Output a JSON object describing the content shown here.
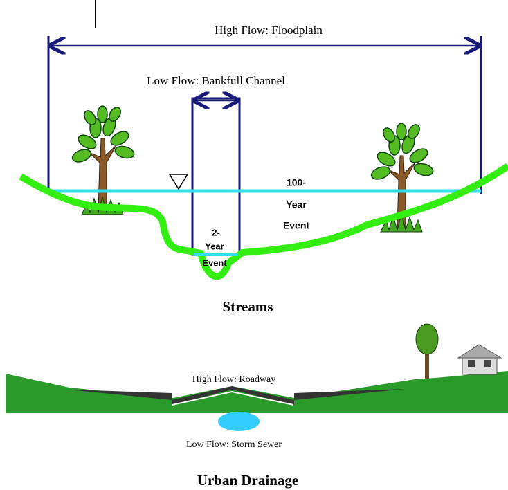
{
  "stream": {
    "high_flow": "High Flow: Floodplain",
    "low_flow": "Low Flow: Bankfull Channel",
    "event_100": [
      "100-",
      "Year",
      "Event"
    ],
    "event_2": [
      "2-",
      "Year",
      "Event"
    ],
    "title": "Streams"
  },
  "urban": {
    "high_flow": "High Flow: Roadway",
    "low_flow": "Low Flow: Storm Sewer",
    "title": "Urban Drainage"
  }
}
